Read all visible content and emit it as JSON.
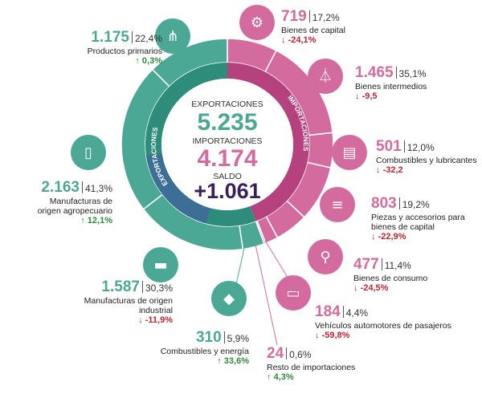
{
  "chart_data": {
    "type": "pie",
    "center": {
      "exports_label": "EXPORTACIONES",
      "exports_value": "5.235",
      "imports_label": "IMPORTACIONES",
      "imports_value": "4.174",
      "balance_label": "SALDO",
      "balance_value": "+1.061"
    },
    "ring_labels": {
      "exports": "EXPORTACIONES",
      "imports": "IMPORTACIONES"
    },
    "exports": [
      {
        "value": "1.175",
        "share": "22,4%",
        "label": "Productos primarios",
        "change": "0,3%",
        "direction": "up",
        "icon": "wheat-icon"
      },
      {
        "value": "2.163",
        "share": "41,3%",
        "label": "Manufacturas de origen agropecuario",
        "change": "12,1%",
        "direction": "up",
        "icon": "bottle-icon"
      },
      {
        "value": "1.587",
        "share": "30,3%",
        "label": "Manufacturas de origen industrial",
        "change": "-11,9%",
        "direction": "down",
        "icon": "truck-icon"
      },
      {
        "value": "310",
        "share": "5,9%",
        "label": "Combustibles y energía",
        "change": "33,6%",
        "direction": "up",
        "icon": "fuel-drop-icon"
      }
    ],
    "imports": [
      {
        "value": "719",
        "share": "17,2%",
        "label": "Bienes de capital",
        "change": "-24,1%",
        "direction": "down",
        "icon": "tractor-icon"
      },
      {
        "value": "1.465",
        "share": "35,1%",
        "label": "Bienes intermedios",
        "change": "-9,5",
        "direction": "down",
        "icon": "flask-icon"
      },
      {
        "value": "501",
        "share": "12,0%",
        "label": "Combustibles y lubricantes",
        "change": "-32,2",
        "direction": "down",
        "icon": "jerrycan-icon"
      },
      {
        "value": "803",
        "share": "19,2%",
        "label": "Piezas y accesorios para bienes de capital",
        "change": "-22,9%",
        "direction": "down",
        "icon": "screw-icon"
      },
      {
        "value": "477",
        "share": "11,4%",
        "label": "Bienes de consumo",
        "change": "-24,5%",
        "direction": "down",
        "icon": "bicycle-icon"
      },
      {
        "value": "184",
        "share": "4,4%",
        "label": "Vehículos automotores de pasajeros",
        "change": "-59,8%",
        "direction": "down",
        "icon": "car-icon"
      },
      {
        "value": "24",
        "share": "0,6%",
        "label": "Resto de importaciones",
        "change": "4,3%",
        "direction": "up",
        "icon": "none"
      }
    ],
    "colors": {
      "exports": "#4aa895",
      "exports_dark": "#2e8c7a",
      "imports": "#d46b9e",
      "imports_dark": "#b5427e",
      "center_fill": "#ffffff",
      "balance": "#3a1f5c",
      "up": "#2e8b3d",
      "down": "#c0242f",
      "ring_inner_blue": "#3d6f96"
    }
  }
}
